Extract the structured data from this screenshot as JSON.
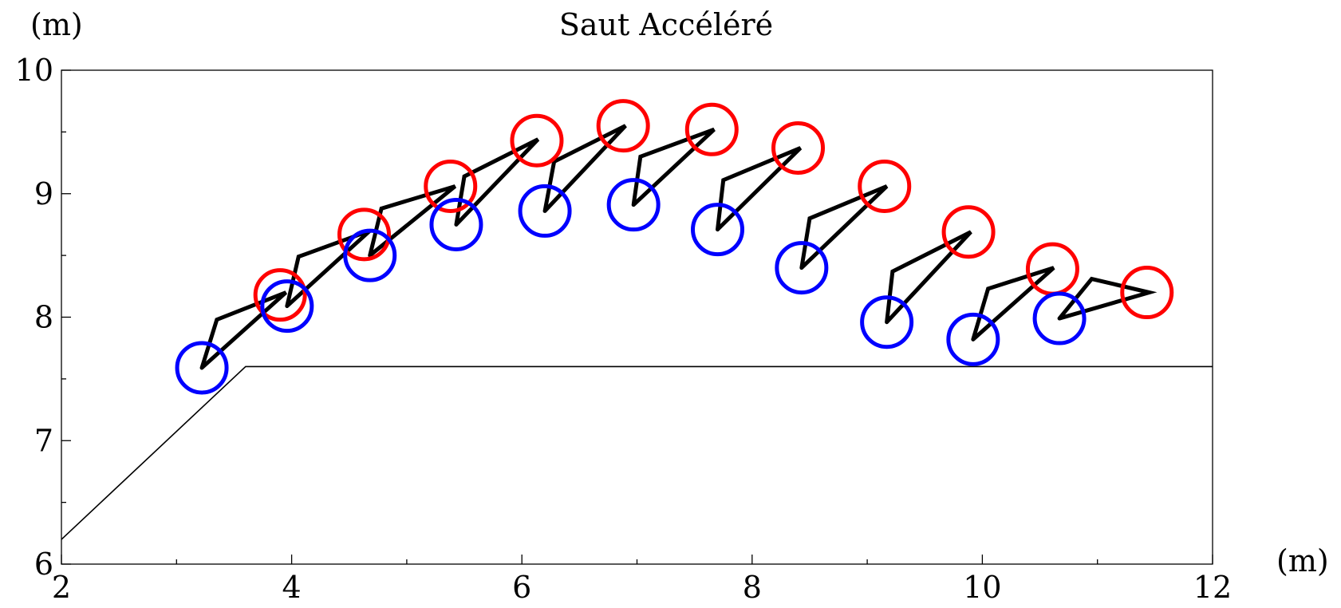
{
  "chart_data": {
    "type": "line",
    "title": "Saut Accéléré",
    "xlabel": "(m)",
    "ylabel": "(m)",
    "xlim": [
      2,
      12
    ],
    "ylim": [
      6,
      10
    ],
    "x_ticks": [
      2,
      4,
      6,
      8,
      10,
      12
    ],
    "y_ticks": [
      6,
      7,
      8,
      9,
      10
    ],
    "grid": false,
    "colors": {
      "red_circle": "#ff0000",
      "blue_circle": "#0000ff",
      "body": "#000000",
      "ground": "#000000"
    },
    "series": [
      {
        "name": "",
        "type": "line",
        "x": [
          2.0,
          3.6,
          12.0
        ],
        "y": [
          6.2,
          7.6,
          7.6
        ]
      }
    ],
    "frames": [
      {
        "blue": [
          3.22,
          7.59
        ],
        "red": [
          3.9,
          8.18
        ],
        "line": [
          [
            3.22,
            7.59
          ],
          [
            3.35,
            7.98
          ],
          [
            3.95,
            8.2
          ],
          [
            3.22,
            7.59
          ]
        ]
      },
      {
        "blue": [
          3.96,
          8.09
        ],
        "red": [
          4.63,
          8.67
        ],
        "line": [
          [
            3.96,
            8.09
          ],
          [
            4.06,
            8.49
          ],
          [
            4.68,
            8.7
          ],
          [
            3.96,
            8.09
          ]
        ]
      },
      {
        "blue": [
          4.68,
          8.5
        ],
        "red": [
          5.38,
          9.06
        ],
        "line": [
          [
            4.68,
            8.5
          ],
          [
            4.78,
            8.88
          ],
          [
            5.42,
            9.06
          ],
          [
            4.68,
            8.5
          ]
        ]
      },
      {
        "blue": [
          5.43,
          8.75
        ],
        "red": [
          6.13,
          9.43
        ],
        "line": [
          [
            5.43,
            8.75
          ],
          [
            5.5,
            9.14
          ],
          [
            6.14,
            9.44
          ],
          [
            5.43,
            8.75
          ]
        ]
      },
      {
        "blue": [
          6.2,
          8.86
        ],
        "red": [
          6.88,
          9.55
        ],
        "line": [
          [
            6.2,
            8.86
          ],
          [
            6.28,
            9.26
          ],
          [
            6.9,
            9.55
          ],
          [
            6.2,
            8.86
          ]
        ]
      },
      {
        "blue": [
          6.97,
          8.91
        ],
        "red": [
          7.65,
          9.52
        ],
        "line": [
          [
            6.97,
            8.91
          ],
          [
            7.03,
            9.3
          ],
          [
            7.67,
            9.52
          ],
          [
            6.97,
            8.91
          ]
        ]
      },
      {
        "blue": [
          7.7,
          8.71
        ],
        "red": [
          8.4,
          9.37
        ],
        "line": [
          [
            7.7,
            8.71
          ],
          [
            7.75,
            9.11
          ],
          [
            8.42,
            9.37
          ],
          [
            7.7,
            8.71
          ]
        ]
      },
      {
        "blue": [
          8.43,
          8.4
        ],
        "red": [
          9.15,
          9.06
        ],
        "line": [
          [
            8.43,
            8.4
          ],
          [
            8.5,
            8.8
          ],
          [
            9.17,
            9.06
          ],
          [
            8.43,
            8.4
          ]
        ]
      },
      {
        "blue": [
          9.17,
          7.96
        ],
        "red": [
          9.88,
          8.69
        ],
        "line": [
          [
            9.17,
            7.96
          ],
          [
            9.22,
            8.37
          ],
          [
            9.9,
            8.69
          ],
          [
            9.17,
            7.96
          ]
        ]
      },
      {
        "blue": [
          9.92,
          7.82
        ],
        "red": [
          10.61,
          8.39
        ],
        "line": [
          [
            9.92,
            7.82
          ],
          [
            10.05,
            8.23
          ],
          [
            10.62,
            8.4
          ],
          [
            9.92,
            7.82
          ]
        ]
      },
      {
        "blue": [
          10.67,
          7.99
        ],
        "red": [
          11.43,
          8.2
        ],
        "line": [
          [
            10.67,
            7.99
          ],
          [
            10.95,
            8.31
          ],
          [
            11.45,
            8.2
          ],
          [
            10.67,
            7.99
          ]
        ]
      }
    ]
  }
}
